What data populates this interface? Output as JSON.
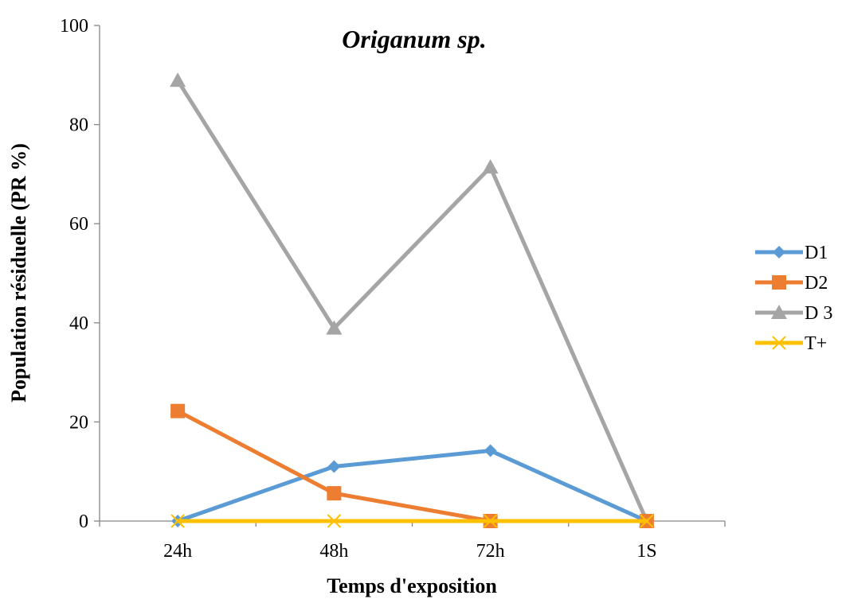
{
  "chart_data": {
    "type": "line",
    "title": "Origanum sp.",
    "xlabel": "Temps d'exposition",
    "ylabel": "Population résiduelle (PR %)",
    "categories": [
      "24h",
      "48h",
      "72h",
      "1S"
    ],
    "ylim": [
      0,
      100
    ],
    "yticks": [
      0,
      20,
      40,
      60,
      80,
      100
    ],
    "grid": false,
    "legend_position": "right",
    "series": [
      {
        "name": "D1",
        "values": [
          0,
          11,
          14.2,
          0
        ],
        "color": "#5B9BD5",
        "marker": "diamond"
      },
      {
        "name": "D2",
        "values": [
          22.2,
          5.6,
          0,
          0
        ],
        "color": "#ED7D31",
        "marker": "square"
      },
      {
        "name": "D 3",
        "values": [
          88.9,
          38.9,
          71.4,
          0
        ],
        "color": "#A5A5A5",
        "marker": "triangle"
      },
      {
        "name": "T+",
        "values": [
          0,
          0,
          0,
          0
        ],
        "color": "#FFC000",
        "marker": "x"
      }
    ]
  }
}
